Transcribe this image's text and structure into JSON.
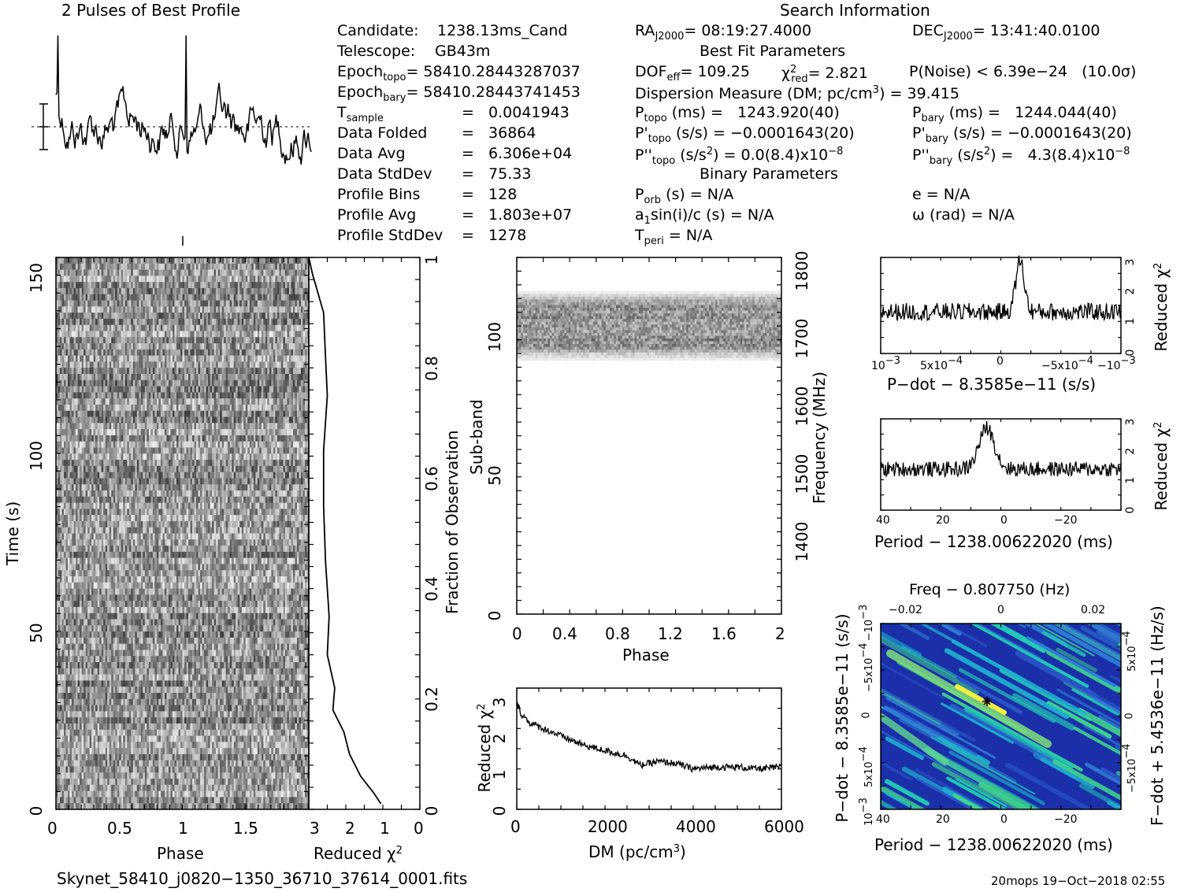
{
  "profile": {
    "title": "2 Pulses of Best Profile"
  },
  "info": {
    "candidate_label": "Candidate:",
    "candidate": "1238.13ms_Cand",
    "telescope_label": "Telescope:",
    "telescope": "GB43m",
    "epoch_topo_label": "Epoch",
    "epoch_topo_sub": "topo",
    "epoch_topo": "= 58410.28443287037",
    "epoch_bary_label": "Epoch",
    "epoch_bary_sub": "bary",
    "epoch_bary": "= 58410.28443741453",
    "tsample_label": "T",
    "tsample_sub": "sample",
    "tsample": "=   0.0041943",
    "data_folded_label": "Data Folded",
    "data_folded": "=   36864",
    "data_avg_label": "Data Avg",
    "data_avg": "=   6.306e+04",
    "data_stddev_label": "Data StdDev",
    "data_stddev": "=   75.33",
    "profile_bins_label": "Profile Bins",
    "profile_bins": "=   128",
    "profile_avg_label": "Profile Avg",
    "profile_avg": "=   1.803e+07",
    "profile_stddev_label": "Profile StdDev",
    "profile_stddev": "=   1278"
  },
  "search": {
    "title": "Search Information",
    "ra_label": "RA",
    "ra_sub": "J2000",
    "ra": "= 08:19:27.4000",
    "dec_label": "DEC",
    "dec_sub": "J2000",
    "dec": "= 13:41:40.0100",
    "best_fit_title": "Best Fit Parameters",
    "dof_label": "DOF",
    "dof_sub": "eff",
    "dof": "= 109.25",
    "chi_label": "χ",
    "chi_sup": "2",
    "chi_sub": "red",
    "chi": "= 2.821",
    "pnoise": "P(Noise) < 6.39e−24   (10.0σ)",
    "dm_text": "Dispersion Measure (DM; pc/cm",
    "dm_sup": "3",
    "dm_value": ") = 39.415",
    "ptopo_label": "P",
    "ptopo_sub": "topo",
    "ptopo": " (ms) =   1243.920(40)",
    "pbary_label": "P",
    "pbary_sub": "bary",
    "pbary": " (ms) =   1244.044(40)",
    "pdtopo_label": "P'",
    "pdtopo_sub": "topo",
    "pdtopo": " (s/s) = −0.0001643(20)",
    "pdbary_label": "P'",
    "pdbary_sub": "bary",
    "pdbary": " (s/s) = −0.0001643(20)",
    "pddtopo_label": "P''",
    "pddtopo_sub": "topo",
    "pddtopo_a": " (s/s",
    "pddtopo_sup1": "2",
    "pddtopo_b": ") = 0.0(8.4)x10",
    "pddtopo_sup2": "−8",
    "pddbary_label": "P''",
    "pddbary_sub": "bary",
    "pddbary_a": " (s/s",
    "pddbary_sup1": "2",
    "pddbary_b": ") =   4.3(8.4)x10",
    "pddbary_sup2": "−8",
    "binary_title": "Binary Parameters",
    "porb_label": "P",
    "porb_sub": "orb",
    "porb": " (s) = N/A",
    "e": "e = N/A",
    "a1_label": "a",
    "a1_sub": "1",
    "a1": "sin(i)/c (s) = N/A",
    "omega": "ω (rad) = N/A",
    "tperi_label": "T",
    "tperi_sub": "peri",
    "tperi": " = N/A"
  },
  "footer": {
    "filename": "Skynet_58410_j0820−1350_36710_37614_0001.fits",
    "stamp": "20mops 19−Oct−2018 02:55"
  },
  "chart_data": [
    {
      "type": "line",
      "name": "profile",
      "title": "2 Pulses of Best Profile",
      "x_range": [
        0,
        2
      ],
      "points": 256
    },
    {
      "type": "heatmap",
      "name": "time-phase",
      "xlabel": "Phase",
      "ylabel": "Time (s)",
      "x_ticks": [
        "0",
        "0.5",
        "1",
        "1.5"
      ],
      "xlim": [
        0,
        2
      ],
      "y_ticks": [
        "0",
        "50",
        "100",
        "150"
      ],
      "ylim": [
        0,
        155
      ],
      "right_axis_label": "Fraction of Observation",
      "right_ticks": [
        "0",
        "0.2",
        "0.4",
        "0.6",
        "0.8",
        "1"
      ]
    },
    {
      "type": "line",
      "name": "time-chi2",
      "xlabel_main": "Reduced ",
      "xlabel_sup": "2",
      "xlabel_chi": "χ",
      "x_ticks": [
        "3",
        "2",
        "1",
        "0"
      ],
      "xlim": [
        3,
        0
      ],
      "points": [
        [
          1.05,
          0.01
        ],
        [
          1.25,
          0.03
        ],
        [
          1.6,
          0.06
        ],
        [
          1.9,
          0.1
        ],
        [
          2.05,
          0.14
        ],
        [
          2.35,
          0.18
        ],
        [
          2.3,
          0.22
        ],
        [
          2.5,
          0.28
        ],
        [
          2.45,
          0.35
        ],
        [
          2.55,
          0.45
        ],
        [
          2.6,
          0.55
        ],
        [
          2.6,
          0.65
        ],
        [
          2.5,
          0.75
        ],
        [
          2.55,
          0.82
        ],
        [
          2.6,
          0.9
        ],
        [
          2.9,
          0.97
        ],
        [
          3.0,
          1.0
        ]
      ]
    },
    {
      "type": "heatmap",
      "name": "subband-phase",
      "xlabel": "Phase",
      "ylabel": "Sub-band",
      "right_label": "Frequency (MHz)",
      "x_ticks": [
        "0",
        "0.4",
        "0.8",
        "1.2",
        "1.6",
        "2"
      ],
      "xlim": [
        0,
        2
      ],
      "y_ticks": [
        "0",
        "50",
        "100"
      ],
      "ylim": [
        0,
        128
      ],
      "right_ticks": [
        "1400",
        "1500",
        "1600",
        "1700",
        "1800"
      ],
      "active_subbands": [
        90,
        116
      ]
    },
    {
      "type": "line",
      "name": "dm-chi2",
      "xlabel_main": "DM (pc/cm",
      "xlabel_sup": "3",
      "xlabel_end": ")",
      "ylabel_main": "Reduced ",
      "ylabel_chi": "χ",
      "ylabel_sup": "2",
      "x_ticks": [
        "0",
        "2000",
        "4000",
        "6000"
      ],
      "xlim": [
        0,
        6000
      ],
      "y_ticks": [
        "0",
        "1",
        "2",
        "3"
      ],
      "ylim": [
        0,
        3.3
      ],
      "points": [
        [
          0,
          2.9
        ],
        [
          100,
          2.6
        ],
        [
          300,
          2.35
        ],
        [
          600,
          2.2
        ],
        [
          1000,
          2.0
        ],
        [
          1500,
          1.75
        ],
        [
          2000,
          1.6
        ],
        [
          2500,
          1.45
        ],
        [
          2800,
          1.2
        ],
        [
          3200,
          1.3
        ],
        [
          3600,
          1.25
        ],
        [
          4000,
          1.1
        ],
        [
          4500,
          1.15
        ],
        [
          5000,
          1.15
        ],
        [
          5500,
          1.1
        ],
        [
          6000,
          1.15
        ]
      ]
    },
    {
      "type": "line",
      "name": "pdot-chi2",
      "xlabel": "P−dot − 8.3585e−11 (s/s)",
      "ylabel_main": "Reduced ",
      "ylabel_chi": "χ",
      "ylabel_sup": "2",
      "x_ticks": [
        "10",
        "5x10",
        "0",
        "−5x10",
        "−10"
      ],
      "x_tick_sups": [
        "−3",
        "−4",
        "",
        "−4",
        "−3"
      ],
      "y_ticks": [
        "0",
        "1",
        "2",
        "3"
      ],
      "ylim": [
        0,
        3
      ],
      "peak_x_fraction": 0.58,
      "peak_value": 2.9,
      "baseline": 1.3
    },
    {
      "type": "line",
      "name": "period-chi2",
      "xlabel": "Period − 1238.00622020 (ms)",
      "ylabel_main": "Reduced ",
      "ylabel_chi": "χ",
      "ylabel_sup": "2",
      "x_ticks": [
        "40",
        "20",
        "0",
        "−20"
      ],
      "xlim": [
        40,
        -37
      ],
      "y_ticks": [
        "0",
        "1",
        "2",
        "3"
      ],
      "ylim": [
        0,
        3
      ],
      "peak_x": 6,
      "peak_value": 2.7,
      "baseline": 1.35
    },
    {
      "type": "heatmap",
      "name": "period-pdot",
      "title": "Freq − 0.807750 (Hz)",
      "top_ticks": [
        "−0.02",
        "0",
        "0.02"
      ],
      "xlabel": "Period − 1238.00622020 (ms)",
      "x_ticks": [
        "40",
        "20",
        "0",
        "−20"
      ],
      "xlim": [
        40,
        -37
      ],
      "ylabel": "P−dot − 8.3585e−11 (s/s)",
      "y_ticks": [
        "10",
        "5x10",
        "0",
        "−5x10",
        "−10"
      ],
      "y_tick_sups": [
        "−3",
        "−4",
        "",
        "−4",
        "−3"
      ],
      "right_label": "F−dot + 5.4536e−11 (Hz/s)",
      "right_ticks": [
        "−5x10",
        "0",
        "5x10"
      ],
      "right_tick_sups": [
        "−4",
        "",
        "−4"
      ],
      "best": [
        5.5,
        0.00013
      ]
    }
  ]
}
